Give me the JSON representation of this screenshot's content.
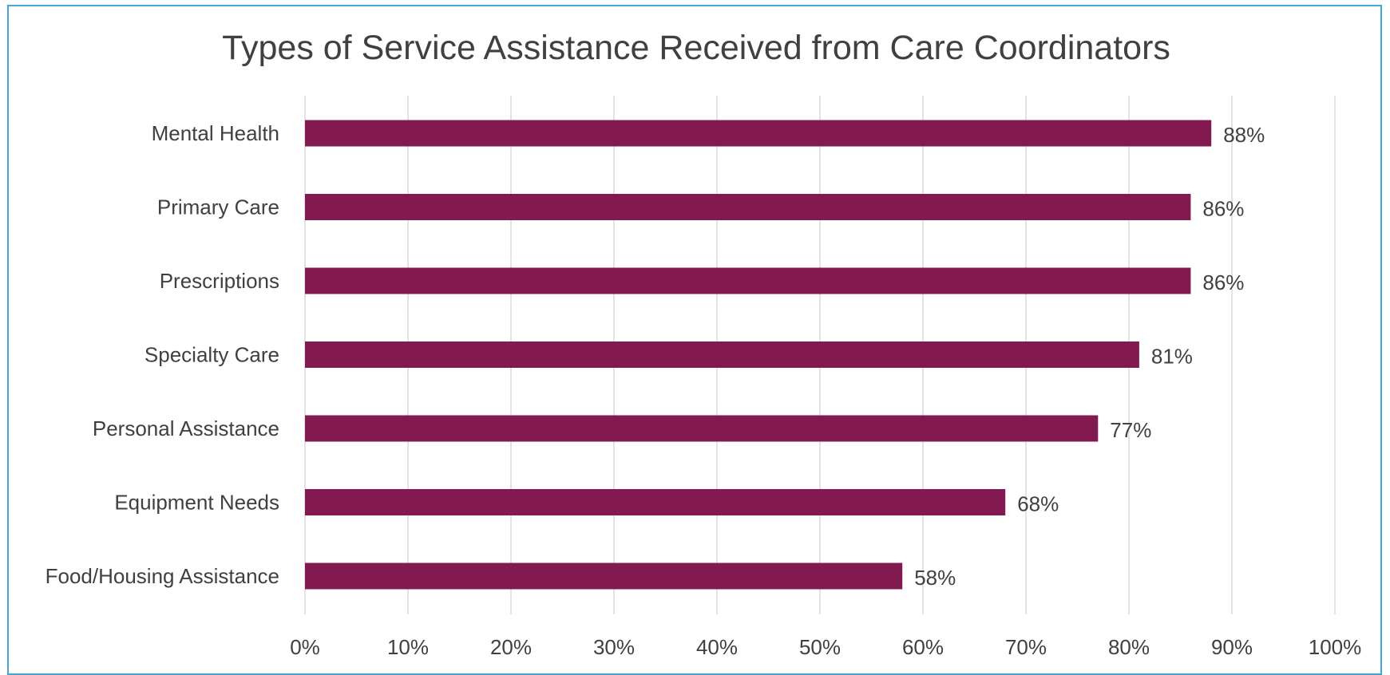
{
  "chart_data": {
    "type": "bar",
    "orientation": "horizontal",
    "title": "Types of Service Assistance Received from Care Coordinators",
    "xlabel": "",
    "ylabel": "",
    "categories": [
      "Mental Health",
      "Primary Care",
      "Prescriptions",
      "Specialty Care",
      "Personal Assistance",
      "Equipment Needs",
      "Food/Housing Assistance"
    ],
    "values": [
      88,
      86,
      86,
      81,
      77,
      68,
      58
    ],
    "value_labels": [
      "88%",
      "86%",
      "86%",
      "81%",
      "77%",
      "68%",
      "58%"
    ],
    "xlim": [
      0,
      100
    ],
    "x_ticks": [
      0,
      10,
      20,
      30,
      40,
      50,
      60,
      70,
      80,
      90,
      100
    ],
    "x_tick_labels": [
      "0%",
      "10%",
      "20%",
      "30%",
      "40%",
      "50%",
      "60%",
      "70%",
      "80%",
      "90%",
      "100%"
    ],
    "grid": "vertical",
    "legend": "none",
    "colors": {
      "bar": "#821a51",
      "grid": "#d9d9d9",
      "text": "#404040",
      "frame": "#41a8d6"
    }
  }
}
